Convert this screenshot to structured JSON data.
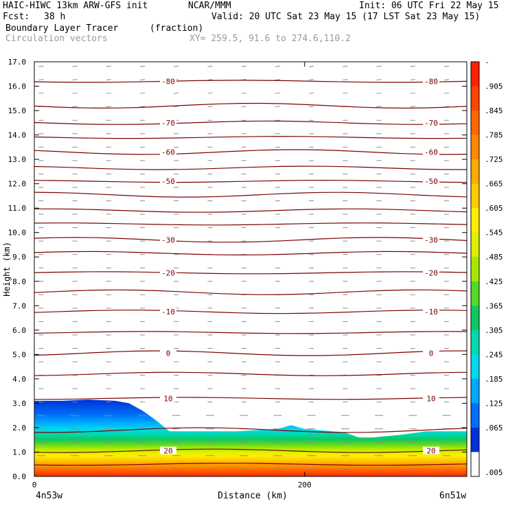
{
  "header": {
    "model": "HAIC-HIWC 13km ARW-GFS init",
    "org": "NCAR/MMM",
    "init": "Init: 06 UTC Fri 22 May 15",
    "fcst_label": "Fcst:",
    "fcst_value": "38 h",
    "valid": "Valid: 20 UTC Sat 23 May 15 (17 LST Sat 23 May 15)",
    "field": "Boundary Layer Tracer",
    "field_units": "(fraction)",
    "vectors": "Circulation vectors",
    "xy": "XY= 259.5, 91.6 to 274.6,110.2"
  },
  "chart_data": {
    "type": "heatmap",
    "ylabel": "Height (km)",
    "xlabel": "Distance (km)",
    "x_start_label": "4n53w",
    "x_end_label": "6n51w",
    "xlim": [
      0,
      320
    ],
    "ylim": [
      0,
      17
    ],
    "x_ticks": [
      0,
      200
    ],
    "y_ticks": [
      "0.0",
      "1.0",
      "2.0",
      "3.0",
      "4.0",
      "5.0",
      "6.0",
      "7.0",
      "8.0",
      "9.0",
      "10.0",
      "11.0",
      "12.0",
      "13.0",
      "14.0",
      "15.0",
      "16.0",
      "17.0"
    ],
    "tracer_top_profile": {
      "x_km": [
        0,
        20,
        40,
        60,
        70,
        80,
        90,
        100,
        150,
        180,
        190,
        200,
        230,
        240,
        250,
        270,
        290,
        320
      ],
      "top_km": [
        3.1,
        3.1,
        3.15,
        3.1,
        3.0,
        2.7,
        2.3,
        1.85,
        1.85,
        1.95,
        2.1,
        1.95,
        1.8,
        1.6,
        1.6,
        1.7,
        1.85,
        1.85
      ]
    },
    "colorbar_labels": [
      "-",
      ".905",
      ".845",
      ".785",
      ".725",
      ".665",
      ".605",
      ".545",
      ".485",
      ".425",
      ".365",
      ".305",
      ".245",
      ".185",
      ".125",
      ".065",
      ".005"
    ],
    "colorbar_colors": [
      "#ff2200",
      "#ff4400",
      "#ff6600",
      "#ff8800",
      "#ffaa00",
      "#ffcc00",
      "#ffee00",
      "#ddf000",
      "#a8e800",
      "#55d828",
      "#10c860",
      "#00d8b0",
      "#00d8f0",
      "#00a8ff",
      "#0070f8",
      "#0030d8"
    ],
    "temperature_contours": [
      {
        "height_km": 0.5,
        "label": ""
      },
      {
        "height_km": 1.05,
        "label": "20"
      },
      {
        "height_km": 1.9,
        "label": ""
      },
      {
        "height_km": 3.2,
        "label": "10"
      },
      {
        "height_km": 4.2,
        "label": ""
      },
      {
        "height_km": 5.05,
        "label": "0"
      },
      {
        "height_km": 5.9,
        "label": ""
      },
      {
        "height_km": 6.75,
        "label": "-10"
      },
      {
        "height_km": 7.55,
        "label": ""
      },
      {
        "height_km": 8.35,
        "label": "-20"
      },
      {
        "height_km": 9.15,
        "label": ""
      },
      {
        "height_km": 9.7,
        "label": "-30"
      },
      {
        "height_km": 10.35,
        "label": ""
      },
      {
        "height_km": 10.9,
        "label": ""
      },
      {
        "height_km": 11.55,
        "label": ""
      },
      {
        "height_km": 12.1,
        "label": "-50"
      },
      {
        "height_km": 12.65,
        "label": ""
      },
      {
        "height_km": 13.3,
        "label": "-60"
      },
      {
        "height_km": 13.9,
        "label": ""
      },
      {
        "height_km": 14.5,
        "label": "-70"
      },
      {
        "height_km": 15.2,
        "label": ""
      },
      {
        "height_km": 16.2,
        "label": "-80"
      }
    ],
    "contour_color": "#7a0000"
  }
}
